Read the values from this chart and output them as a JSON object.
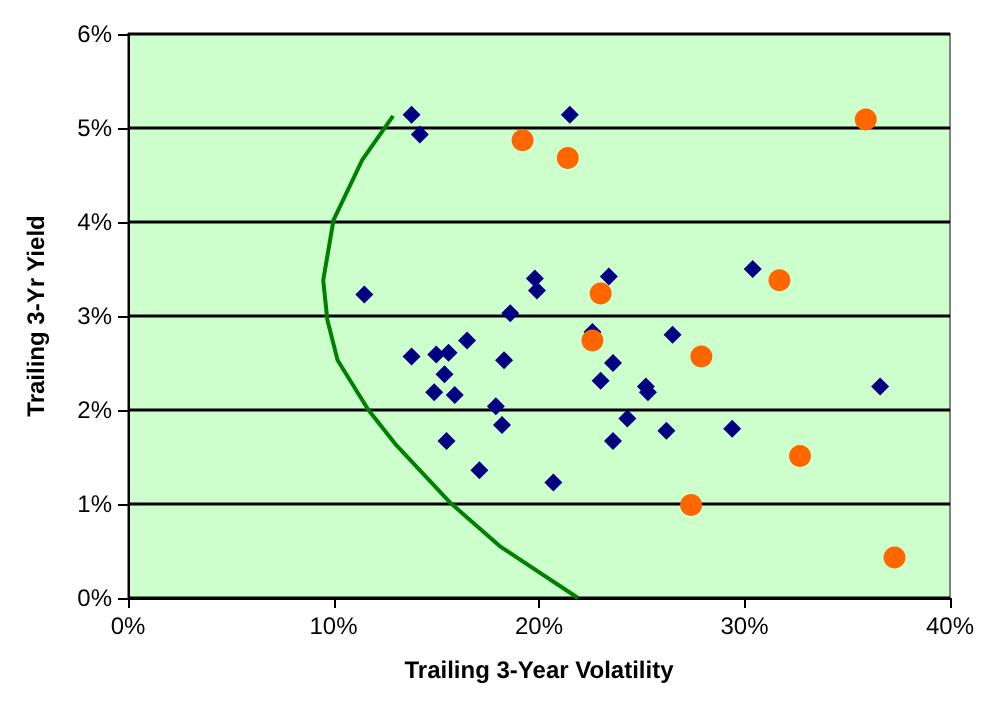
{
  "chart_data": {
    "type": "scatter",
    "xlabel": "Trailing 3-Year Volatility",
    "ylabel": "Trailing 3-Yr Yield",
    "xlim": [
      0,
      40
    ],
    "xticks": [
      {
        "value": 0,
        "label": "0%"
      },
      {
        "value": 10,
        "label": "10%"
      },
      {
        "value": 20,
        "label": "20%"
      },
      {
        "value": 30,
        "label": "30%"
      },
      {
        "value": 40,
        "label": "40%"
      }
    ],
    "ylim": [
      0,
      6
    ],
    "yticks": [
      {
        "value": 0,
        "label": "0%"
      },
      {
        "value": 1,
        "label": "1%"
      },
      {
        "value": 2,
        "label": "2%"
      },
      {
        "value": 3,
        "label": "3%"
      },
      {
        "value": 4,
        "label": "4%"
      },
      {
        "value": 5,
        "label": "5%"
      },
      {
        "value": 6,
        "label": "6%"
      }
    ],
    "grid": "y",
    "series": [
      {
        "marker": "diamond",
        "color": "#000080",
        "x": [
          13.8,
          14.2,
          21.5,
          11.5,
          19.8,
          19.9,
          18.6,
          13.8,
          15.0,
          15.6,
          16.5,
          18.3,
          15.4,
          14.9,
          15.9,
          17.9,
          18.2,
          15.5,
          17.1,
          20.7,
          23.4,
          30.4,
          26.5,
          23.6,
          23.0,
          25.2,
          25.3,
          36.6,
          24.3,
          23.6,
          26.2,
          29.4,
          22.6
        ],
        "values": [
          5.14,
          4.93,
          5.14,
          3.23,
          3.4,
          3.27,
          3.03,
          2.57,
          2.59,
          2.61,
          2.74,
          2.53,
          2.38,
          2.19,
          2.16,
          2.04,
          1.84,
          1.67,
          1.36,
          1.23,
          3.42,
          3.5,
          2.8,
          2.5,
          2.31,
          2.25,
          2.19,
          2.25,
          1.91,
          1.67,
          1.78,
          1.8,
          2.83
        ]
      },
      {
        "marker": "circle",
        "color": "#ff6600",
        "x": [
          19.2,
          21.4,
          23.0,
          35.9,
          31.7,
          22.6,
          27.9,
          32.7,
          27.4,
          37.3
        ],
        "values": [
          4.87,
          4.68,
          3.24,
          5.09,
          3.38,
          2.74,
          2.57,
          1.51,
          0.99,
          0.43
        ]
      },
      {
        "type": "line",
        "marker": "none",
        "color": "#008000",
        "x": [
          12.9,
          11.4,
          10.0,
          9.5,
          9.6,
          9.7,
          10.2,
          11.7,
          13.0,
          15.7,
          18.1,
          21.9
        ],
        "values": [
          5.13,
          4.66,
          4.02,
          3.38,
          3.17,
          2.96,
          2.53,
          2.0,
          1.64,
          1.01,
          0.55,
          0.0
        ]
      }
    ]
  }
}
